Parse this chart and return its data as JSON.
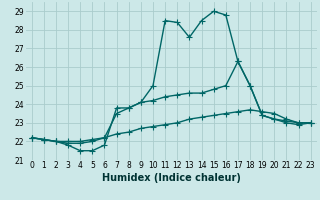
{
  "xlabel": "Humidex (Indice chaleur)",
  "bg_color": "#cce8e8",
  "grid_color": "#aacccc",
  "line_color": "#006666",
  "xlim": [
    -0.5,
    23.5
  ],
  "ylim": [
    21.0,
    29.5
  ],
  "yticks": [
    21,
    22,
    23,
    24,
    25,
    26,
    27,
    28,
    29
  ],
  "xticks": [
    0,
    1,
    2,
    3,
    4,
    5,
    6,
    7,
    8,
    9,
    10,
    11,
    12,
    13,
    14,
    15,
    16,
    17,
    18,
    19,
    20,
    21,
    22,
    23
  ],
  "series": [
    [
      22.2,
      22.1,
      22.0,
      21.8,
      21.5,
      21.5,
      21.8,
      23.8,
      23.8,
      24.1,
      25.0,
      28.5,
      28.4,
      27.6,
      28.5,
      29.0,
      28.8,
      26.3,
      25.0,
      23.4,
      23.2,
      23.0,
      22.9,
      23.0
    ],
    [
      22.2,
      22.1,
      22.0,
      21.9,
      21.9,
      22.0,
      22.2,
      23.5,
      23.8,
      24.1,
      24.2,
      24.4,
      24.5,
      24.6,
      24.6,
      24.8,
      25.0,
      26.3,
      25.0,
      23.4,
      23.2,
      23.1,
      23.0,
      23.0
    ],
    [
      22.2,
      22.1,
      22.0,
      22.0,
      22.0,
      22.1,
      22.2,
      22.4,
      22.5,
      22.7,
      22.8,
      22.9,
      23.0,
      23.2,
      23.3,
      23.4,
      23.5,
      23.6,
      23.7,
      23.6,
      23.5,
      23.2,
      23.0,
      23.0
    ]
  ],
  "marker": "+",
  "markersize": 4,
  "linewidth": 1.0,
  "tick_fontsize": 5.5,
  "xlabel_fontsize": 7
}
